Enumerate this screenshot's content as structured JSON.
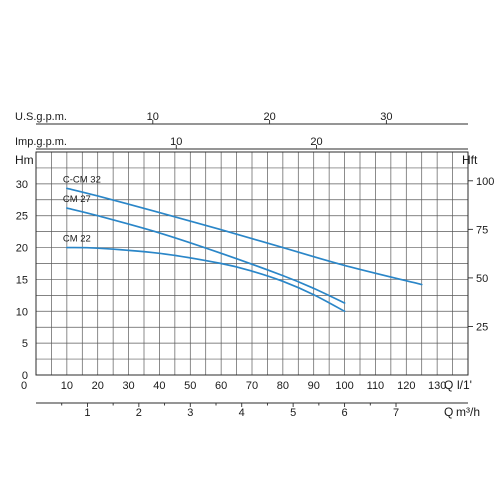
{
  "chart_data": {
    "type": "line",
    "title": "",
    "grid": true,
    "x": {
      "primary_unit": "l/1'",
      "primary_unit_prefix": "Q",
      "range": [
        0,
        140
      ],
      "tick_values": [
        0,
        10,
        20,
        30,
        40,
        50,
        60,
        70,
        80,
        90,
        100,
        110,
        120,
        130
      ],
      "tick_labels": [
        "0",
        "10",
        "20",
        "30",
        "40",
        "50",
        "60",
        "70",
        "80",
        "90",
        "100",
        "110",
        "120",
        "130"
      ]
    },
    "y": {
      "left_unit": "Hm",
      "range": [
        0,
        35
      ],
      "tick_values": [
        0,
        5,
        10,
        15,
        20,
        25,
        30
      ],
      "tick_labels": [
        "0",
        "5",
        "10",
        "15",
        "20",
        "25",
        "30"
      ],
      "right_unit": "Hft",
      "right_ticks": [
        {
          "label": "25",
          "value_m": 7.62
        },
        {
          "label": "50",
          "value_m": 15.24
        },
        {
          "label": "75",
          "value_m": 22.86
        },
        {
          "label": "100",
          "value_m": 30.48
        }
      ]
    },
    "secondary_x_axes": [
      {
        "label": "U.S.g.p.m.",
        "position": "top",
        "ticks": [
          {
            "label": "10",
            "q_lpm": 37.85
          },
          {
            "label": "20",
            "q_lpm": 75.7
          },
          {
            "label": "30",
            "q_lpm": 113.55
          }
        ]
      },
      {
        "label": "Imp.g.p.m.",
        "position": "top",
        "ticks": [
          {
            "label": "10",
            "q_lpm": 45.46
          },
          {
            "label": "20",
            "q_lpm": 90.92
          }
        ]
      },
      {
        "label": "m³/h",
        "prefix": "Q",
        "position": "bottom",
        "ticks": [
          {
            "label": "1",
            "q_lpm": 16.67
          },
          {
            "label": "2",
            "q_lpm": 33.33
          },
          {
            "label": "3",
            "q_lpm": 50
          },
          {
            "label": "4",
            "q_lpm": 66.67
          },
          {
            "label": "5",
            "q_lpm": 83.33
          },
          {
            "label": "6",
            "q_lpm": 100
          },
          {
            "label": "7",
            "q_lpm": 116.67
          }
        ]
      }
    ],
    "series": [
      {
        "name": "C-CM 32",
        "x": [
          10,
          20,
          40,
          60,
          80,
          100,
          125
        ],
        "y": [
          29.3,
          28.1,
          25.5,
          22.8,
          20.0,
          17.2,
          14.2
        ]
      },
      {
        "name": "CM 27",
        "x": [
          10,
          20,
          40,
          60,
          80,
          90,
          100
        ],
        "y": [
          26.2,
          25.0,
          22.3,
          19.1,
          15.6,
          13.6,
          11.3
        ]
      },
      {
        "name": "CM 22",
        "x": [
          10,
          20,
          40,
          60,
          70,
          80,
          90,
          100
        ],
        "y": [
          20.0,
          19.9,
          19.1,
          17.5,
          16.3,
          14.7,
          12.6,
          10.0
        ]
      }
    ],
    "colors": {
      "curve": "#2a86c8",
      "grid": "#5a5a5a",
      "frame": "#2b2b2b",
      "text": "#1a1a1a"
    }
  }
}
